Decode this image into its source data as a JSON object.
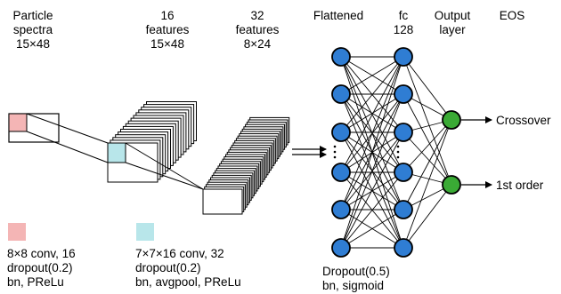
{
  "colors": {
    "kernel1": "#f4b5b5",
    "kernel2": "#b8e6ea",
    "neuron_hidden": "#2f7dd3",
    "neuron_output": "#3aaa35",
    "stroke": "#000000"
  },
  "headers": {
    "input": [
      "Particle",
      "spectra",
      "15×48"
    ],
    "conv1": [
      "16",
      "features",
      "15×48"
    ],
    "conv2": [
      "32",
      "features",
      "8×24"
    ],
    "flatten": [
      "Flattened"
    ],
    "fc": [
      "fc",
      "128"
    ],
    "output": [
      "Output",
      "layer"
    ],
    "eos": [
      "EOS"
    ]
  },
  "notes": {
    "conv1": [
      "8×8 conv, 16",
      "dropout(0.2)",
      "bn, PReLu"
    ],
    "conv2": [
      "7×7×16 conv, 32",
      "dropout(0.2)",
      "bn, avgpool, PReLu"
    ],
    "fc": [
      "Dropout(0.5)",
      "bn, sigmoid"
    ]
  },
  "outputs": [
    "Crossover",
    "1st order"
  ]
}
